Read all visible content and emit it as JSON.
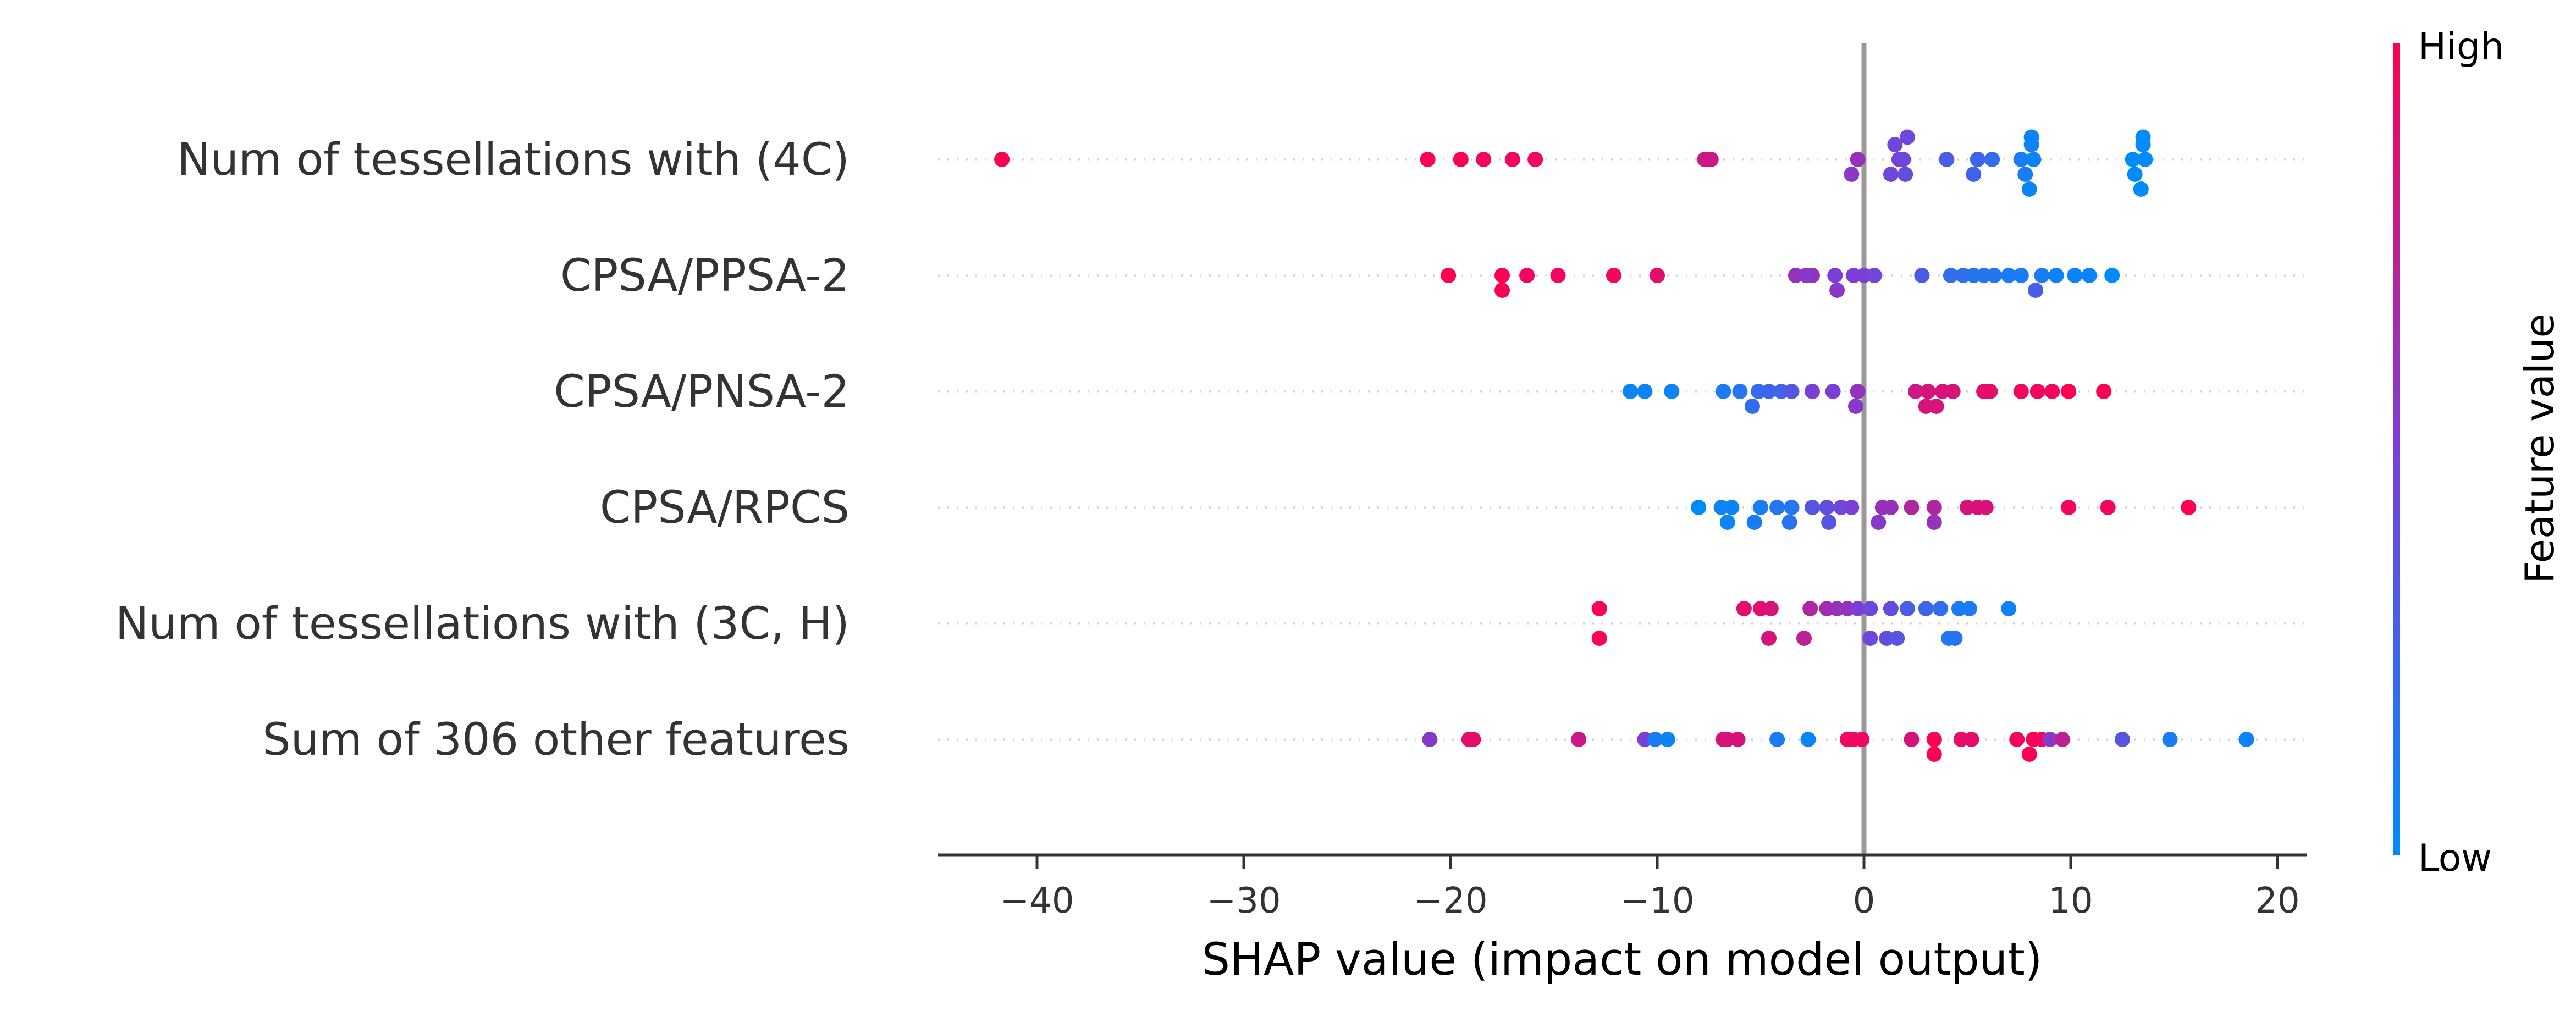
{
  "chart_data": {
    "type": "scatter",
    "title": "",
    "xlabel": "SHAP value (impact on model output)",
    "xlim": [
      -45,
      21.5
    ],
    "xticks": [
      -40,
      -30,
      -20,
      -10,
      0,
      10,
      20
    ],
    "xtick_labels": [
      "−40",
      "−30",
      "−20",
      "−10",
      "0",
      "10",
      "20"
    ],
    "grid": false,
    "legend": "colorbar, right",
    "colorbar": {
      "title": "Feature value",
      "high_label": "High",
      "low_label": "Low",
      "high_color": "#ff0052",
      "low_color": "#008bfb"
    },
    "features": [
      {
        "name": "Num of tessellations with (4C)",
        "points": [
          {
            "x": -41.7,
            "v": 1.0,
            "j": 0
          },
          {
            "x": -21.1,
            "v": 1.0,
            "j": 0
          },
          {
            "x": -19.5,
            "v": 1.0,
            "j": 0
          },
          {
            "x": -18.4,
            "v": 0.95,
            "j": 0
          },
          {
            "x": -17.0,
            "v": 0.95,
            "j": 0
          },
          {
            "x": -15.9,
            "v": 0.95,
            "j": 0
          },
          {
            "x": -7.7,
            "v": 0.8,
            "j": 0
          },
          {
            "x": -7.4,
            "v": 0.8,
            "j": 0
          },
          {
            "x": -0.6,
            "v": 0.55,
            "j": 1
          },
          {
            "x": -0.3,
            "v": 0.6,
            "j": 0
          },
          {
            "x": 1.3,
            "v": 0.45,
            "j": 1
          },
          {
            "x": 1.5,
            "v": 0.45,
            "j": -1
          },
          {
            "x": 1.7,
            "v": 0.5,
            "j": 0
          },
          {
            "x": 1.9,
            "v": 0.45,
            "j": 0
          },
          {
            "x": 2.0,
            "v": 0.4,
            "j": 1
          },
          {
            "x": 2.1,
            "v": 0.45,
            "j": -1.5
          },
          {
            "x": 4.0,
            "v": 0.3,
            "j": 0
          },
          {
            "x": 5.3,
            "v": 0.25,
            "j": 1
          },
          {
            "x": 5.5,
            "v": 0.25,
            "j": 0
          },
          {
            "x": 6.2,
            "v": 0.2,
            "j": 0
          },
          {
            "x": 7.8,
            "v": 0.1,
            "j": 1
          },
          {
            "x": 7.6,
            "v": 0.1,
            "j": 0
          },
          {
            "x": 8.0,
            "v": 0.05,
            "j": 2
          },
          {
            "x": 8.1,
            "v": 0.05,
            "j": -1
          },
          {
            "x": 8.2,
            "v": 0.05,
            "j": 0
          },
          {
            "x": 8.1,
            "v": 0.05,
            "j": -1.5
          },
          {
            "x": 13.0,
            "v": 0.0,
            "j": 0
          },
          {
            "x": 13.1,
            "v": 0.0,
            "j": 1
          },
          {
            "x": 13.4,
            "v": 0.0,
            "j": 2
          },
          {
            "x": 13.6,
            "v": 0.0,
            "j": 0
          },
          {
            "x": 13.5,
            "v": 0.0,
            "j": -1
          },
          {
            "x": 13.5,
            "v": 0.0,
            "j": -1.5
          }
        ]
      },
      {
        "name": "CPSA/PPSA-2",
        "points": [
          {
            "x": -20.1,
            "v": 1.0,
            "j": 0
          },
          {
            "x": -17.5,
            "v": 1.0,
            "j": 1
          },
          {
            "x": -17.5,
            "v": 1.0,
            "j": 0
          },
          {
            "x": -16.3,
            "v": 0.95,
            "j": 0
          },
          {
            "x": -14.8,
            "v": 0.95,
            "j": 0
          },
          {
            "x": -12.1,
            "v": 0.95,
            "j": 0
          },
          {
            "x": -10.0,
            "v": 0.9,
            "j": 0
          },
          {
            "x": -3.3,
            "v": 0.6,
            "j": 0
          },
          {
            "x": -2.5,
            "v": 0.6,
            "j": 0
          },
          {
            "x": -2.8,
            "v": 0.55,
            "j": 0
          },
          {
            "x": -1.3,
            "v": 0.55,
            "j": 1
          },
          {
            "x": -1.4,
            "v": 0.5,
            "j": 0
          },
          {
            "x": -0.5,
            "v": 0.5,
            "j": 0
          },
          {
            "x": 0.0,
            "v": 0.5,
            "j": 0
          },
          {
            "x": 0.5,
            "v": 0.45,
            "j": 0
          },
          {
            "x": 2.8,
            "v": 0.3,
            "j": 0
          },
          {
            "x": 4.2,
            "v": 0.2,
            "j": 0
          },
          {
            "x": 4.8,
            "v": 0.2,
            "j": 0
          },
          {
            "x": 5.3,
            "v": 0.15,
            "j": 0
          },
          {
            "x": 5.8,
            "v": 0.15,
            "j": 0
          },
          {
            "x": 6.3,
            "v": 0.15,
            "j": 0
          },
          {
            "x": 7.0,
            "v": 0.1,
            "j": 0
          },
          {
            "x": 7.6,
            "v": 0.1,
            "j": 0
          },
          {
            "x": 8.3,
            "v": 0.3,
            "j": 1
          },
          {
            "x": 8.6,
            "v": 0.1,
            "j": 0
          },
          {
            "x": 9.3,
            "v": 0.05,
            "j": 0
          },
          {
            "x": 10.2,
            "v": 0.05,
            "j": 0
          },
          {
            "x": 10.9,
            "v": 0.05,
            "j": 0
          },
          {
            "x": 12.0,
            "v": 0.0,
            "j": 0
          }
        ]
      },
      {
        "name": "CPSA/PNSA-2",
        "points": [
          {
            "x": -11.3,
            "v": 0.05,
            "j": 0
          },
          {
            "x": -10.6,
            "v": 0.05,
            "j": 0
          },
          {
            "x": -9.3,
            "v": 0.05,
            "j": 0
          },
          {
            "x": -6.8,
            "v": 0.1,
            "j": 0
          },
          {
            "x": -6.0,
            "v": 0.15,
            "j": 0
          },
          {
            "x": -5.4,
            "v": 0.2,
            "j": 1
          },
          {
            "x": -5.1,
            "v": 0.2,
            "j": 0
          },
          {
            "x": -4.6,
            "v": 0.25,
            "j": 0
          },
          {
            "x": -4.0,
            "v": 0.25,
            "j": 0
          },
          {
            "x": -3.5,
            "v": 0.35,
            "j": 0
          },
          {
            "x": -2.5,
            "v": 0.5,
            "j": 0
          },
          {
            "x": -1.5,
            "v": 0.5,
            "j": 0
          },
          {
            "x": -0.4,
            "v": 0.55,
            "j": 1
          },
          {
            "x": -0.3,
            "v": 0.6,
            "j": 0
          },
          {
            "x": 2.5,
            "v": 0.8,
            "j": 0
          },
          {
            "x": 3.0,
            "v": 0.85,
            "j": 1
          },
          {
            "x": 3.5,
            "v": 0.85,
            "j": 1
          },
          {
            "x": 3.1,
            "v": 0.85,
            "j": 0
          },
          {
            "x": 3.8,
            "v": 0.85,
            "j": 0
          },
          {
            "x": 4.3,
            "v": 0.85,
            "j": 0
          },
          {
            "x": 5.8,
            "v": 0.9,
            "j": 0
          },
          {
            "x": 6.1,
            "v": 0.9,
            "j": 0
          },
          {
            "x": 7.6,
            "v": 0.95,
            "j": 0
          },
          {
            "x": 8.4,
            "v": 0.95,
            "j": 0
          },
          {
            "x": 9.1,
            "v": 0.95,
            "j": 0
          },
          {
            "x": 9.9,
            "v": 1.0,
            "j": 0
          },
          {
            "x": 11.6,
            "v": 1.0,
            "j": 0
          }
        ]
      },
      {
        "name": "CPSA/RPCS",
        "points": [
          {
            "x": -8.0,
            "v": 0.0,
            "j": 0
          },
          {
            "x": -6.6,
            "v": 0.05,
            "j": 1
          },
          {
            "x": -6.4,
            "v": 0.05,
            "j": 0
          },
          {
            "x": -6.9,
            "v": 0.05,
            "j": 0
          },
          {
            "x": -5.3,
            "v": 0.1,
            "j": 1
          },
          {
            "x": -5.0,
            "v": 0.1,
            "j": 0
          },
          {
            "x": -4.2,
            "v": 0.15,
            "j": 0
          },
          {
            "x": -3.6,
            "v": 0.15,
            "j": 1
          },
          {
            "x": -3.5,
            "v": 0.15,
            "j": 0
          },
          {
            "x": -2.5,
            "v": 0.35,
            "j": 0
          },
          {
            "x": -1.8,
            "v": 0.4,
            "j": 0
          },
          {
            "x": -1.7,
            "v": 0.35,
            "j": 1
          },
          {
            "x": -1.1,
            "v": 0.45,
            "j": 0
          },
          {
            "x": -0.6,
            "v": 0.5,
            "j": 0
          },
          {
            "x": 0.7,
            "v": 0.55,
            "j": 1
          },
          {
            "x": 0.9,
            "v": 0.6,
            "j": 0
          },
          {
            "x": 1.3,
            "v": 0.6,
            "j": 0
          },
          {
            "x": 2.3,
            "v": 0.7,
            "j": 0
          },
          {
            "x": 3.4,
            "v": 0.6,
            "j": 1
          },
          {
            "x": 3.4,
            "v": 0.7,
            "j": 0
          },
          {
            "x": 5.0,
            "v": 0.85,
            "j": 0
          },
          {
            "x": 5.5,
            "v": 0.85,
            "j": 0
          },
          {
            "x": 5.9,
            "v": 0.85,
            "j": 0
          },
          {
            "x": 9.9,
            "v": 0.95,
            "j": 0
          },
          {
            "x": 11.8,
            "v": 0.95,
            "j": 0
          },
          {
            "x": 15.7,
            "v": 1.0,
            "j": 0
          }
        ]
      },
      {
        "name": "Num of tessellations with (3C, H)",
        "points": [
          {
            "x": -12.8,
            "v": 1.0,
            "j": 1
          },
          {
            "x": -12.8,
            "v": 1.0,
            "j": -1
          },
          {
            "x": -5.8,
            "v": 0.9,
            "j": -1
          },
          {
            "x": -5.0,
            "v": 0.9,
            "j": -1
          },
          {
            "x": -4.5,
            "v": 0.85,
            "j": -1
          },
          {
            "x": -4.6,
            "v": 0.85,
            "j": 1
          },
          {
            "x": -2.9,
            "v": 0.75,
            "j": 1
          },
          {
            "x": -2.6,
            "v": 0.7,
            "j": -1
          },
          {
            "x": -1.8,
            "v": 0.65,
            "j": -1
          },
          {
            "x": -1.3,
            "v": 0.6,
            "j": -1
          },
          {
            "x": -0.8,
            "v": 0.6,
            "j": -1
          },
          {
            "x": -0.3,
            "v": 0.5,
            "j": -1
          },
          {
            "x": 0.3,
            "v": 0.45,
            "j": -1
          },
          {
            "x": 0.3,
            "v": 0.45,
            "j": 1
          },
          {
            "x": 1.1,
            "v": 0.4,
            "j": 1
          },
          {
            "x": 1.6,
            "v": 0.35,
            "j": 1
          },
          {
            "x": 2.1,
            "v": 0.3,
            "j": -1
          },
          {
            "x": 3.0,
            "v": 0.25,
            "j": -1
          },
          {
            "x": 3.7,
            "v": 0.2,
            "j": -1
          },
          {
            "x": 4.1,
            "v": 0.15,
            "j": 1
          },
          {
            "x": 4.4,
            "v": 0.15,
            "j": 1
          },
          {
            "x": 4.6,
            "v": 0.1,
            "j": -1
          },
          {
            "x": 5.1,
            "v": 0.1,
            "j": -1
          },
          {
            "x": 7.0,
            "v": 0.05,
            "j": -1
          },
          {
            "x": 1.3,
            "v": 0.4,
            "j": -1
          }
        ]
      },
      {
        "name": "Sum of 306 other features",
        "points": [
          {
            "x": -21.0,
            "v": 0.55,
            "j": 0
          },
          {
            "x": -19.1,
            "v": 0.9,
            "j": 0
          },
          {
            "x": -18.9,
            "v": 0.9,
            "j": 0
          },
          {
            "x": -13.8,
            "v": 0.8,
            "j": 0
          },
          {
            "x": -10.6,
            "v": 0.5,
            "j": 0
          },
          {
            "x": -10.1,
            "v": 0.1,
            "j": 0
          },
          {
            "x": -9.5,
            "v": 0.05,
            "j": 0
          },
          {
            "x": -6.8,
            "v": 0.85,
            "j": 0
          },
          {
            "x": -6.6,
            "v": 0.85,
            "j": 0
          },
          {
            "x": -6.1,
            "v": 0.85,
            "j": 0
          },
          {
            "x": -4.2,
            "v": 0.1,
            "j": 0
          },
          {
            "x": -2.7,
            "v": 0.05,
            "j": 0
          },
          {
            "x": -0.8,
            "v": 0.95,
            "j": 0
          },
          {
            "x": -0.5,
            "v": 0.95,
            "j": 0
          },
          {
            "x": -0.1,
            "v": 0.95,
            "j": 0
          },
          {
            "x": 2.3,
            "v": 0.85,
            "j": 0
          },
          {
            "x": 3.4,
            "v": 1.0,
            "j": 1
          },
          {
            "x": 3.4,
            "v": 1.0,
            "j": 0
          },
          {
            "x": 4.7,
            "v": 0.9,
            "j": 0
          },
          {
            "x": 5.2,
            "v": 0.9,
            "j": 0
          },
          {
            "x": 7.4,
            "v": 0.95,
            "j": 0
          },
          {
            "x": 8.0,
            "v": 1.0,
            "j": 1
          },
          {
            "x": 8.2,
            "v": 1.0,
            "j": 0
          },
          {
            "x": 8.6,
            "v": 0.95,
            "j": 0
          },
          {
            "x": 9.0,
            "v": 0.55,
            "j": 0
          },
          {
            "x": 9.6,
            "v": 0.75,
            "j": 0
          },
          {
            "x": 12.5,
            "v": 0.35,
            "j": 0
          },
          {
            "x": 14.8,
            "v": 0.1,
            "j": 0
          },
          {
            "x": 18.5,
            "v": 0.05,
            "j": 0
          }
        ]
      }
    ]
  }
}
